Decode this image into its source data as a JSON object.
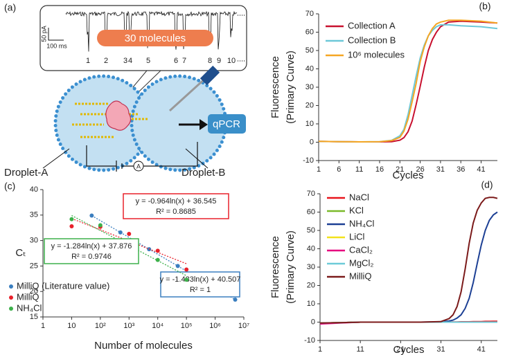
{
  "diagram": {
    "panel_label": "(a)",
    "scale_current": "50 pA",
    "scale_time": "100 ms",
    "molecule_count": "30 molecules",
    "events": [
      "1",
      "2",
      "3",
      "4",
      "5",
      "6",
      "7",
      "8",
      "9",
      "10"
    ],
    "qpcr": "qPCR",
    "droplet_a": "Droplet-A",
    "droplet_b": "Droplet-B",
    "ammeter": "A"
  },
  "chart_data": [
    {
      "type": "line",
      "panel_label": "(b)",
      "xlabel": "Cycles",
      "ylabel": [
        "Fluorescence",
        "(Primary Curve)"
      ],
      "x": [
        1,
        6,
        11,
        16,
        19,
        21,
        22,
        23,
        24,
        25,
        26,
        27,
        28,
        29,
        30,
        31,
        33,
        36,
        41,
        45
      ],
      "xlim": [
        1,
        45
      ],
      "xticks": [
        1,
        6,
        11,
        16,
        21,
        26,
        31,
        36,
        41
      ],
      "ylim": [
        -10,
        70
      ],
      "yticks": [
        -10,
        0,
        10,
        20,
        30,
        40,
        50,
        60,
        70
      ],
      "legend": "upper left",
      "series": [
        {
          "name": "Collection A",
          "color": "#c8102e",
          "values": [
            0.5,
            0.3,
            0.2,
            0.2,
            0.3,
            1.1,
            2.5,
            5.7,
            11.5,
            20.5,
            30.5,
            41,
            50,
            56,
            60,
            63,
            65.5,
            66,
            65.5,
            65
          ]
        },
        {
          "name": "Collection B",
          "color": "#6cc8d8",
          "values": [
            0.5,
            0.3,
            0.2,
            0.3,
            1,
            3.5,
            7,
            15,
            25.5,
            36,
            46,
            53,
            58,
            61,
            63,
            64,
            64,
            63.5,
            63,
            62
          ]
        },
        {
          "name": "10⁶ molecules",
          "color": "#f5a623",
          "values": [
            0.5,
            0.3,
            0.2,
            0.3,
            0.9,
            2.6,
            6,
            12.5,
            22,
            32,
            44,
            52,
            58,
            62,
            64.5,
            65.5,
            66.5,
            66.5,
            66,
            65
          ]
        }
      ]
    },
    {
      "type": "scatter",
      "panel_label": "(c)",
      "xlabel": "Number of molecules",
      "ylabel": "Cₜ",
      "xscale": "log",
      "xlim": [
        1,
        10000000
      ],
      "xticks": [
        1,
        10,
        {
          "value": 100,
          "label": "10²"
        },
        {
          "value": 1000,
          "label": "10³"
        },
        {
          "value": 10000,
          "label": "10⁴"
        },
        {
          "value": 100000,
          "label": "10⁵"
        },
        {
          "value": 1000000,
          "label": "10⁶"
        },
        {
          "value": 10000000,
          "label": "10⁷"
        }
      ],
      "ylim": [
        15,
        40
      ],
      "yticks": [
        15,
        20,
        25,
        30,
        35,
        40
      ],
      "legend": "lower left",
      "series": [
        {
          "name": "MilliQ (Literature value)",
          "color": "#3a7ebf",
          "x": [
            50,
            500,
            5000,
            50000,
            500000,
            5000000
          ],
          "values": [
            34.9,
            31.6,
            28.3,
            25.0,
            21.7,
            18.4
          ],
          "fit": {
            "slope": -1.433,
            "intercept": 40.507,
            "label": "y = -1.433ln(x) + 40.507",
            "r2": "R² = 1"
          }
        },
        {
          "name": "MilliQ",
          "color": "#e8202a",
          "x": [
            10,
            100,
            1000,
            10000,
            100000
          ],
          "values": [
            32.8,
            32.7,
            31.3,
            28.0,
            24.3
          ],
          "fit": {
            "slope": -0.964,
            "intercept": 36.545,
            "label": "y = -0.964ln(x) + 36.545",
            "r2": "R² = 0.8685"
          }
        },
        {
          "name": "NH₄Cl",
          "color": "#3cb04a",
          "x": [
            10,
            100,
            1000,
            10000,
            100000
          ],
          "values": [
            34.2,
            33.0,
            29.8,
            26.2,
            22.3
          ],
          "fit": {
            "slope": -1.284,
            "intercept": 37.876,
            "label": "y = -1.284ln(x) + 37.876",
            "r2": "R² = 0.9746"
          }
        }
      ]
    },
    {
      "type": "line",
      "panel_label": "(d)",
      "xlabel": "Cycles",
      "ylabel": [
        "Fluorescence",
        "(Primary Curve)"
      ],
      "x": [
        1,
        6,
        11,
        16,
        21,
        26,
        31,
        33,
        34,
        35,
        36,
        37,
        38,
        39,
        40,
        41,
        42,
        43,
        44,
        45
      ],
      "xlim": [
        1,
        45
      ],
      "xticks": [
        1,
        11,
        21,
        31,
        41
      ],
      "ylim": [
        -10,
        70
      ],
      "yticks": [
        -10,
        0,
        10,
        20,
        30,
        40,
        50,
        60,
        70
      ],
      "legend": "upper left",
      "series": [
        {
          "name": "NaCl",
          "color": "#e8141c",
          "values": [
            -0.5,
            -0.3,
            0,
            0,
            0,
            0,
            0,
            0.1,
            0.1,
            0.1,
            0.2,
            0.2,
            0.2,
            0.3,
            0.3,
            0.3,
            0.4,
            0.4,
            0.5,
            0.5
          ]
        },
        {
          "name": "KCl",
          "color": "#7ab929",
          "values": [
            -0.5,
            -0.3,
            0,
            0,
            0,
            0,
            0,
            0,
            0,
            0,
            0,
            0,
            0,
            0,
            0,
            0,
            0,
            0,
            0,
            0
          ]
        },
        {
          "name": "NH₄Cl",
          "color": "#1c3f94",
          "values": [
            -0.5,
            -0.3,
            0,
            0,
            0,
            0,
            0.2,
            0.6,
            1.1,
            2.2,
            4,
            7.5,
            13,
            21.5,
            32,
            42,
            50,
            55.5,
            58.5,
            60
          ]
        },
        {
          "name": "LiCl",
          "color": "#f2e21b",
          "values": [
            -0.5,
            -0.3,
            0,
            0,
            0,
            0,
            0,
            0,
            0,
            0,
            0,
            0,
            0,
            0,
            0,
            0,
            0,
            0,
            0,
            0
          ]
        },
        {
          "name": "CaCl₂",
          "color": "#e6007e",
          "values": [
            -1,
            -0.5,
            0,
            0,
            0,
            0,
            0,
            0,
            0,
            0,
            0,
            0,
            0,
            0,
            0,
            0,
            0,
            0,
            0,
            0
          ]
        },
        {
          "name": "MgCl₂",
          "color": "#6ccbd8",
          "values": [
            -0.5,
            -0.3,
            0,
            0,
            0,
            0,
            0,
            0,
            0,
            0,
            0,
            0,
            0,
            0,
            0,
            0,
            0,
            0,
            0,
            0
          ]
        },
        {
          "name": "MilliQ",
          "color": "#7b1a1a",
          "values": [
            -0.5,
            -0.3,
            0,
            0,
            0,
            0,
            0.3,
            1.9,
            4,
            8.5,
            16.5,
            29,
            43,
            54,
            61,
            65,
            67.5,
            68,
            68,
            67.5
          ]
        }
      ]
    }
  ]
}
